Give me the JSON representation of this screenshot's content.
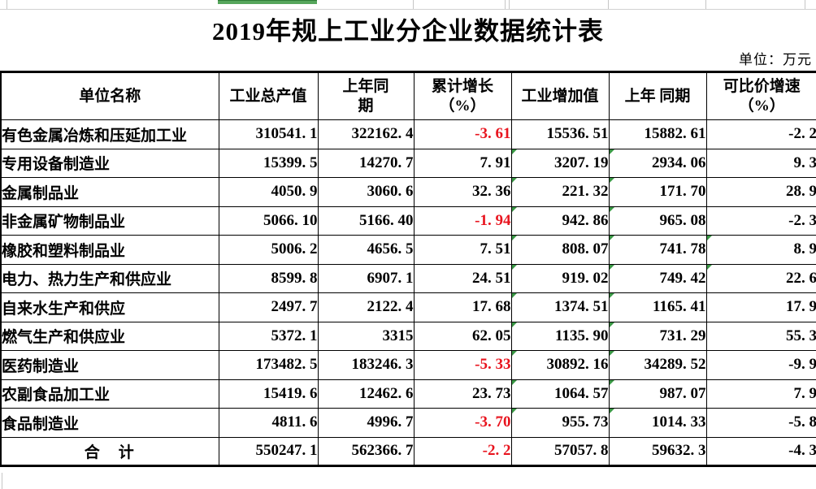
{
  "page": {
    "title": "2019年规上工业分企业数据统计表",
    "unit_note": "单位：万元"
  },
  "colors": {
    "negative_red": "#e8141e",
    "triangle_green": "#3a9845",
    "selection_green": "#56a65c"
  },
  "table": {
    "headers": [
      {
        "key": "name",
        "label": "单位名称"
      },
      {
        "key": "gross_output",
        "label": "工业总产值"
      },
      {
        "key": "gross_output_prev",
        "label": "上年同\n期"
      },
      {
        "key": "cum_growth_pct",
        "label": "累计增长\n（%）"
      },
      {
        "key": "added_value",
        "label": "工业增加值"
      },
      {
        "key": "added_value_prev",
        "label": "上年 同期"
      },
      {
        "key": "comparable_growth_pct",
        "label": "可比价增速\n（%）"
      }
    ],
    "rows": [
      {
        "name": "有色金属冶炼和压延加工业",
        "gross_output": "310541.1",
        "gross_output_prev": "322162.4",
        "cum_growth_pct": "-3.61",
        "added_value": "15536.51",
        "added_value_prev": "15882.61",
        "comparable_growth_pct": "-2.2",
        "triangle_cols": []
      },
      {
        "name": "专用设备制造业",
        "gross_output": "15399.5",
        "gross_output_prev": "14270.7",
        "cum_growth_pct": "7.91",
        "added_value": "3207.19",
        "added_value_prev": "2934.06",
        "comparable_growth_pct": "9.3",
        "triangle_cols": [
          "added_value",
          "added_value_prev"
        ]
      },
      {
        "name": "金属制品业",
        "gross_output": "4050.9",
        "gross_output_prev": "3060.6",
        "cum_growth_pct": "32.36",
        "added_value": "221.32",
        "added_value_prev": "171.70",
        "comparable_growth_pct": "28.9",
        "triangle_cols": [
          "added_value",
          "added_value_prev"
        ]
      },
      {
        "name": "非金属矿物制品业",
        "gross_output": "5066.10",
        "gross_output_prev": "5166.40",
        "cum_growth_pct": "-1.94",
        "added_value": "942.86",
        "added_value_prev": "965.08",
        "comparable_growth_pct": "-2.3",
        "triangle_cols": [
          "added_value",
          "added_value_prev"
        ]
      },
      {
        "name": "橡胶和塑料制品业",
        "gross_output": "5006.2",
        "gross_output_prev": "4656.5",
        "cum_growth_pct": "7.51",
        "added_value": "808.07",
        "added_value_prev": "741.78",
        "comparable_growth_pct": "8.9",
        "triangle_cols": [
          "added_value",
          "added_value_prev",
          "comparable_growth_pct"
        ]
      },
      {
        "name": "电力、热力生产和供应业",
        "gross_output": "8599.8",
        "gross_output_prev": "6907.1",
        "cum_growth_pct": "24.51",
        "added_value": "919.02",
        "added_value_prev": "749.42",
        "comparable_growth_pct": "22.6",
        "triangle_cols": [
          "added_value",
          "added_value_prev",
          "comparable_growth_pct"
        ]
      },
      {
        "name": "自来水生产和供应",
        "gross_output": "2497.7",
        "gross_output_prev": "2122.4",
        "cum_growth_pct": "17.68",
        "added_value": "1374.51",
        "added_value_prev": "1165.41",
        "comparable_growth_pct": "17.9",
        "triangle_cols": [
          "added_value",
          "added_value_prev"
        ]
      },
      {
        "name": "燃气生产和供应业",
        "gross_output": "5372.1",
        "gross_output_prev": "3315",
        "cum_growth_pct": "62.05",
        "added_value": "1135.90",
        "added_value_prev": "731.29",
        "comparable_growth_pct": "55.3",
        "triangle_cols": [
          "added_value",
          "added_value_prev"
        ]
      },
      {
        "name": "医药制造业",
        "gross_output": "173482.5",
        "gross_output_prev": "183246.3",
        "cum_growth_pct": "-5.33",
        "added_value": "30892.16",
        "added_value_prev": "34289.52",
        "comparable_growth_pct": "-9.9",
        "triangle_cols": [
          "added_value",
          "added_value_prev"
        ]
      },
      {
        "name": "农副食品加工业",
        "gross_output": "15419.6",
        "gross_output_prev": "12462.6",
        "cum_growth_pct": "23.73",
        "added_value": "1064.57",
        "added_value_prev": "987.07",
        "comparable_growth_pct": "7.9",
        "triangle_cols": [
          "added_value",
          "added_value_prev"
        ]
      },
      {
        "name": "食品制造业",
        "gross_output": "4811.6",
        "gross_output_prev": "4996.7",
        "cum_growth_pct": "-3.70",
        "added_value": "955.73",
        "added_value_prev": "1014.33",
        "comparable_growth_pct": "-5.8",
        "triangle_cols": [
          "added_value",
          "added_value_prev"
        ]
      }
    ],
    "total_row": {
      "name": "合　计",
      "gross_output": "550247.1",
      "gross_output_prev": "562366.7",
      "cum_growth_pct": "-2.2",
      "added_value": "57057.8",
      "added_value_prev": "59632.3",
      "comparable_growth_pct": "-4.3",
      "triangle_cols": []
    }
  }
}
